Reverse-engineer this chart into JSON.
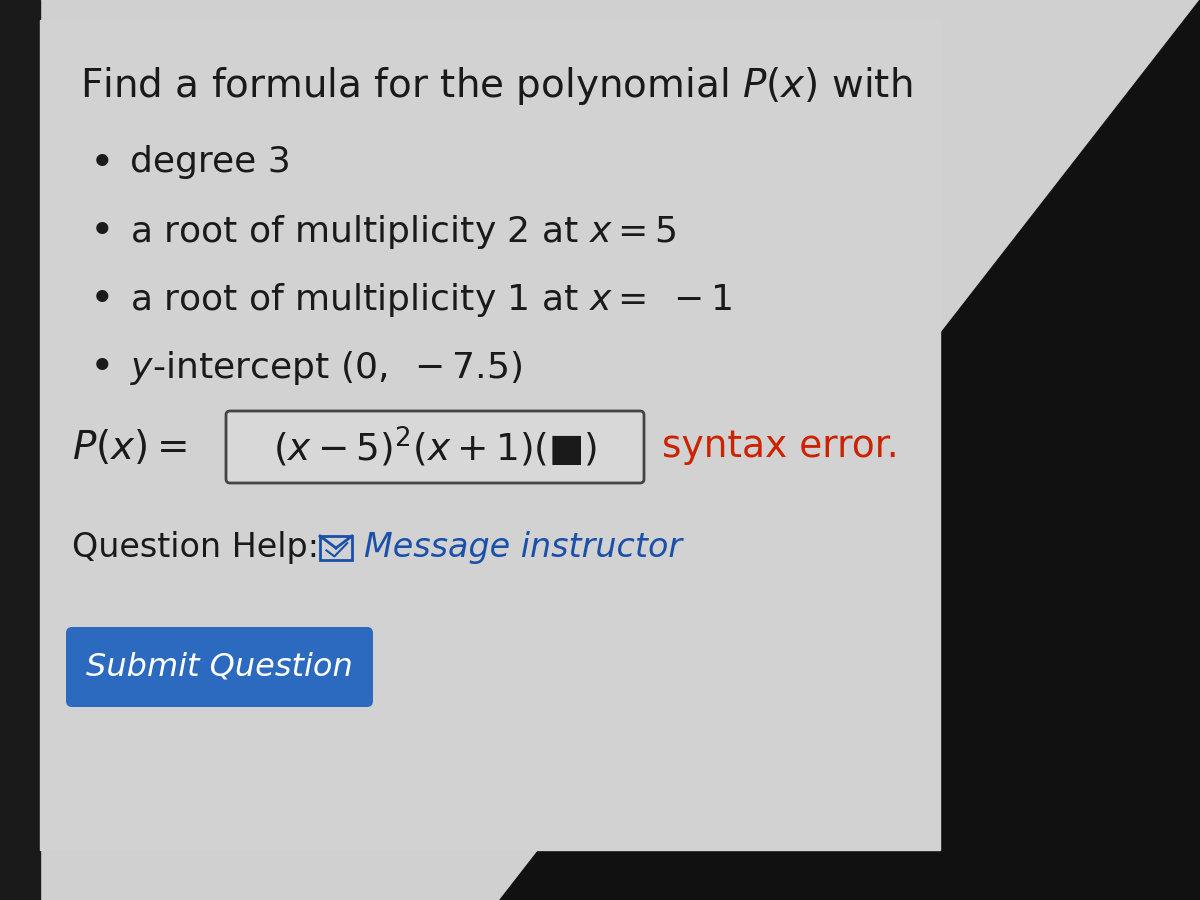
{
  "bg_color_top": "#1a1a1a",
  "bg_color_main": "#d4d4d4",
  "title_text_plain": "Find a formula for the polynomial ",
  "title_text_math": "$P(x)$",
  "title_text_end": " with",
  "title_fontsize": 28,
  "bullets": [
    "degree 3",
    "a root of multiplicity 2 at $x = 5$",
    "a root of multiplicity 1 at $x =\\ -1$",
    "$y$-intercept $(0,\\ -7.5)$"
  ],
  "bullet_fontsize": 26,
  "formula_fontsize": 26,
  "syntax_error_text": "syntax error.",
  "syntax_error_color": "#cc2200",
  "question_help_text": "Question Help:",
  "message_instructor_text": "Message instructor",
  "message_instructor_color": "#1a4faa",
  "submit_button_text": "Submit Question",
  "submit_button_bg": "#2b6abf",
  "submit_button_text_color": "#ffffff",
  "text_color": "#1a1a1a"
}
